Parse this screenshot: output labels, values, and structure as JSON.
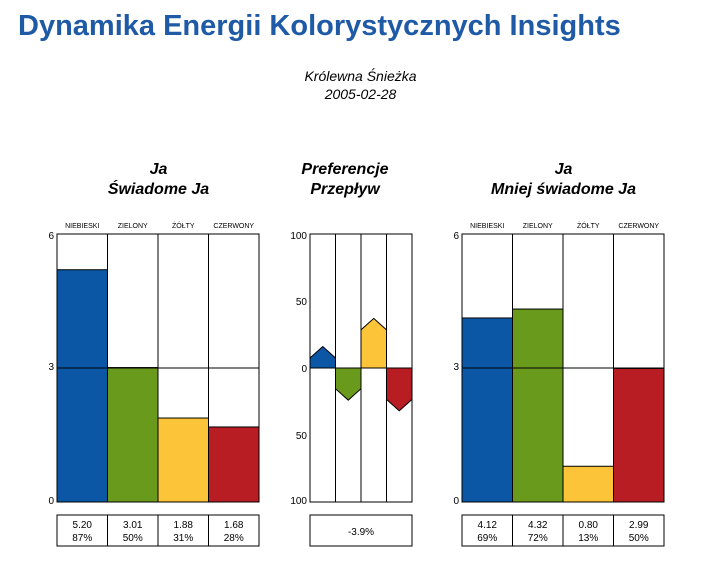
{
  "header": {
    "title": "Dynamika Energii Kolorystycznych Insights",
    "person_name": "Królewna Śnieżka",
    "date": "2005-02-28"
  },
  "colors": {
    "blue": "#0b57a6",
    "green": "#6a9a1b",
    "yellow": "#fcc438",
    "red": "#b71d22"
  },
  "chart_data": [
    {
      "type": "bar",
      "title_line1": "Ja",
      "title_line2": "Świadome Ja",
      "categories": [
        "NIEBIESKI",
        "ZIELONY",
        "ŻÓŁTY",
        "CZERWONY"
      ],
      "values": [
        5.2,
        3.01,
        1.88,
        1.68
      ],
      "value_labels": [
        "5.20",
        "3.01",
        "1.88",
        "1.68"
      ],
      "percent_labels": [
        "87%",
        "50%",
        "31%",
        "28%"
      ],
      "ylim": [
        0,
        6
      ],
      "yticks": [
        "0",
        "3",
        "6"
      ]
    },
    {
      "type": "bar",
      "title_line1": "Preferencje",
      "title_line2": "Przepływ",
      "categories": [
        "NIEBIESKI",
        "ZIELONY",
        "ŻÓŁTY",
        "CZERWONY"
      ],
      "values": [
        16,
        -24,
        37,
        -32
      ],
      "ylim": [
        -100,
        100
      ],
      "yticks": [
        "100",
        "50",
        "0",
        "50",
        "100"
      ],
      "summary_label": "-3.9%"
    },
    {
      "type": "bar",
      "title_line1": "Ja",
      "title_line2": "Mniej świadome Ja",
      "categories": [
        "NIEBIESKI",
        "ZIELONY",
        "ŻÓŁTY",
        "CZERWONY"
      ],
      "values": [
        4.12,
        4.32,
        0.8,
        2.99
      ],
      "value_labels": [
        "4.12",
        "4.32",
        "0.80",
        "2.99"
      ],
      "percent_labels": [
        "69%",
        "72%",
        "13%",
        "50%"
      ],
      "ylim": [
        0,
        6
      ],
      "yticks": [
        "0",
        "3",
        "6"
      ]
    }
  ]
}
